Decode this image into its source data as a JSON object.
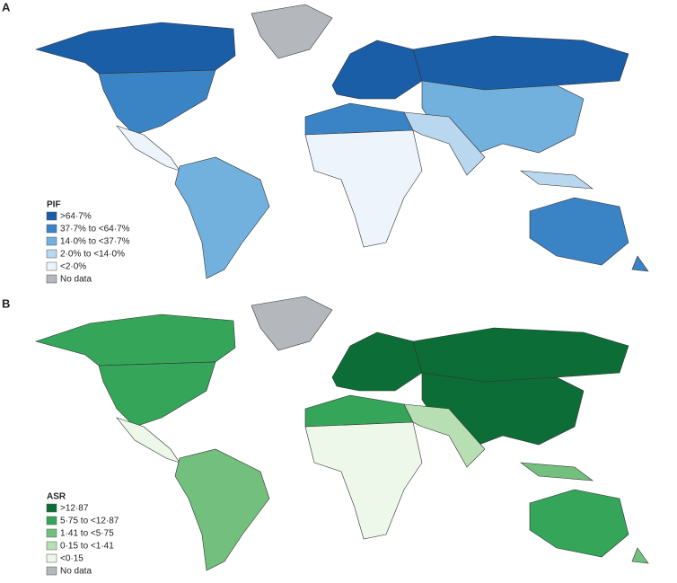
{
  "panels": [
    {
      "label": "A",
      "legend": {
        "title": "PIF",
        "items": [
          {
            "label": ">64·7%",
            "color": "#1a5ea8"
          },
          {
            "label": "37·7% to <64·7%",
            "color": "#3a84c6"
          },
          {
            "label": "14·0% to <37·7%",
            "color": "#72b0de"
          },
          {
            "label": "2·0% to <14·0%",
            "color": "#b9d7ef"
          },
          {
            "label": "<2·0%",
            "color": "#edf4fb"
          },
          {
            "label": "No data",
            "color": "#b4b7bc"
          }
        ]
      }
    },
    {
      "label": "B",
      "legend": {
        "title": "ASR",
        "items": [
          {
            "label": ">12·87",
            "color": "#0c6e36"
          },
          {
            "label": "5·75 to <12·87",
            "color": "#35a55a"
          },
          {
            "label": "1·41 to <5·75",
            "color": "#73c07e"
          },
          {
            "label": "0·15 to <1·41",
            "color": "#b8deb3"
          },
          {
            "label": "<0·15",
            "color": "#edf7ea"
          },
          {
            "label": "No data",
            "color": "#b4b7bc"
          }
        ]
      }
    }
  ]
}
